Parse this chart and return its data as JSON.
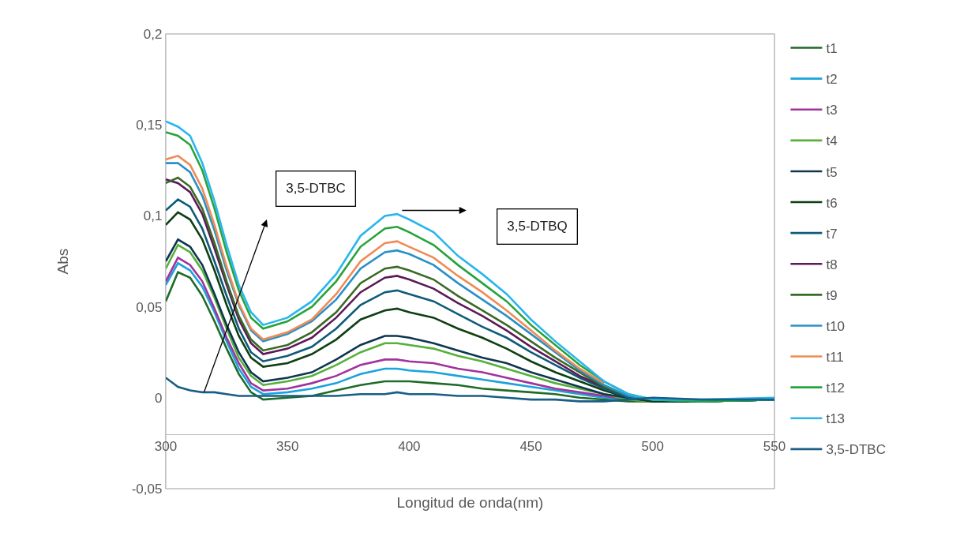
{
  "chart_data": {
    "type": "line",
    "xlabel": "Longitud de onda(nm)",
    "ylabel": "Abs",
    "x": [
      300,
      305,
      310,
      315,
      320,
      325,
      330,
      335,
      340,
      350,
      360,
      370,
      380,
      390,
      395,
      400,
      410,
      420,
      430,
      440,
      450,
      460,
      470,
      480,
      490,
      500,
      520,
      550
    ],
    "series": [
      {
        "name": "t1",
        "color": "#1f6b28",
        "values": [
          0.053,
          0.069,
          0.066,
          0.056,
          0.042,
          0.027,
          0.013,
          0.003,
          -0.001,
          0.0,
          0.001,
          0.004,
          0.007,
          0.009,
          0.009,
          0.009,
          0.008,
          0.007,
          0.005,
          0.004,
          0.003,
          0.002,
          0.0,
          -0.001,
          -0.002,
          -0.002,
          -0.002,
          -0.001
        ]
      },
      {
        "name": "t2",
        "color": "#1aa3dc",
        "values": [
          0.062,
          0.074,
          0.07,
          0.061,
          0.047,
          0.031,
          0.016,
          0.006,
          0.002,
          0.003,
          0.005,
          0.008,
          0.013,
          0.016,
          0.016,
          0.015,
          0.014,
          0.012,
          0.01,
          0.008,
          0.006,
          0.004,
          0.002,
          0.0,
          -0.001,
          -0.002,
          -0.002,
          -0.001
        ]
      },
      {
        "name": "t3",
        "color": "#a0339c",
        "values": [
          0.064,
          0.077,
          0.073,
          0.064,
          0.049,
          0.033,
          0.019,
          0.008,
          0.004,
          0.005,
          0.008,
          0.012,
          0.018,
          0.021,
          0.021,
          0.02,
          0.019,
          0.016,
          0.014,
          0.011,
          0.008,
          0.005,
          0.003,
          0.001,
          -0.001,
          -0.002,
          null,
          null
        ]
      },
      {
        "name": "t4",
        "color": "#56b03a",
        "values": [
          0.071,
          0.084,
          0.08,
          0.07,
          0.055,
          0.038,
          0.022,
          0.012,
          0.007,
          0.009,
          0.012,
          0.018,
          0.025,
          0.03,
          0.03,
          0.029,
          0.027,
          0.023,
          0.02,
          0.016,
          0.012,
          0.008,
          0.005,
          0.002,
          -0.001,
          -0.002,
          -0.002,
          -0.001
        ]
      },
      {
        "name": "t5",
        "color": "#0f3550",
        "values": [
          0.075,
          0.087,
          0.083,
          0.073,
          0.057,
          0.04,
          0.025,
          0.014,
          0.009,
          0.011,
          0.014,
          0.021,
          0.029,
          0.034,
          0.034,
          0.033,
          0.03,
          0.026,
          0.022,
          0.019,
          0.014,
          0.01,
          0.006,
          0.002,
          0.0,
          -0.002,
          -0.002,
          -0.001
        ]
      },
      {
        "name": "t6",
        "color": "#0f3f14",
        "values": [
          0.095,
          0.102,
          0.098,
          0.087,
          0.07,
          0.051,
          0.034,
          0.022,
          0.017,
          0.019,
          0.024,
          0.032,
          0.043,
          0.048,
          0.049,
          0.047,
          0.044,
          0.038,
          0.033,
          0.027,
          0.02,
          0.014,
          0.009,
          0.004,
          0.0,
          -0.002,
          -0.002,
          -0.001
        ]
      },
      {
        "name": "t7",
        "color": "#0e5b7a",
        "values": [
          0.103,
          0.109,
          0.105,
          0.093,
          0.075,
          0.056,
          0.038,
          0.025,
          0.02,
          0.023,
          0.028,
          0.038,
          0.051,
          0.058,
          0.059,
          0.057,
          0.053,
          0.046,
          0.039,
          0.033,
          0.025,
          0.018,
          0.011,
          0.005,
          0.0,
          -0.001,
          -0.002,
          -0.001
        ]
      },
      {
        "name": "t8",
        "color": "#5c1a58",
        "values": [
          0.12,
          0.118,
          0.113,
          0.101,
          0.082,
          0.062,
          0.043,
          0.03,
          0.024,
          0.027,
          0.033,
          0.044,
          0.058,
          0.066,
          0.067,
          0.065,
          0.06,
          0.052,
          0.045,
          0.037,
          0.028,
          0.02,
          0.012,
          0.006,
          0.001,
          -0.001,
          null,
          null
        ]
      },
      {
        "name": "t9",
        "color": "#3a6a25",
        "values": [
          0.118,
          0.121,
          0.116,
          0.104,
          0.085,
          0.064,
          0.045,
          0.032,
          0.026,
          0.029,
          0.036,
          0.047,
          0.063,
          0.071,
          0.072,
          0.07,
          0.065,
          0.056,
          0.048,
          0.04,
          0.031,
          0.022,
          0.014,
          0.006,
          0.001,
          -0.001,
          -0.002,
          -0.001
        ]
      },
      {
        "name": "t10",
        "color": "#2990c8",
        "values": [
          0.129,
          0.129,
          0.124,
          0.111,
          0.092,
          0.07,
          0.051,
          0.037,
          0.031,
          0.035,
          0.042,
          0.054,
          0.071,
          0.08,
          0.081,
          0.079,
          0.073,
          0.063,
          0.054,
          0.045,
          0.035,
          0.025,
          0.015,
          0.007,
          0.001,
          -0.001,
          -0.002,
          -0.001
        ]
      },
      {
        "name": "t11",
        "color": "#ef8b55",
        "values": [
          0.131,
          0.133,
          0.128,
          0.115,
          0.095,
          0.072,
          0.052,
          0.038,
          0.032,
          0.036,
          0.043,
          0.057,
          0.075,
          0.085,
          0.086,
          0.083,
          0.077,
          0.067,
          0.058,
          0.048,
          0.037,
          0.026,
          0.016,
          0.008,
          null,
          null,
          null,
          null
        ]
      },
      {
        "name": "t12",
        "color": "#27a33b",
        "values": [
          0.146,
          0.144,
          0.139,
          0.125,
          0.104,
          0.08,
          0.059,
          0.044,
          0.038,
          0.042,
          0.05,
          0.064,
          0.083,
          0.093,
          0.094,
          0.091,
          0.084,
          0.073,
          0.063,
          0.053,
          0.04,
          0.029,
          0.018,
          0.009,
          0.002,
          -0.001,
          -0.002,
          -0.001
        ]
      },
      {
        "name": "t13",
        "color": "#2ab6ec",
        "values": [
          0.152,
          0.149,
          0.144,
          0.129,
          0.108,
          0.084,
          0.062,
          0.047,
          0.04,
          0.044,
          0.053,
          0.068,
          0.089,
          0.1,
          0.101,
          0.098,
          0.091,
          0.078,
          0.068,
          0.057,
          0.043,
          0.031,
          0.02,
          0.009,
          0.002,
          -0.001,
          -0.001,
          0.0
        ]
      },
      {
        "name": "3,5-DTBC",
        "color": "#195e85",
        "values": [
          0.011,
          0.006,
          0.004,
          0.003,
          0.003,
          0.002,
          0.001,
          0.001,
          0.001,
          0.001,
          0.001,
          0.001,
          0.002,
          0.002,
          0.003,
          0.002,
          0.002,
          0.001,
          0.001,
          0.0,
          -0.001,
          -0.001,
          -0.002,
          -0.002,
          -0.001,
          0.0,
          -0.001,
          -0.001
        ]
      }
    ],
    "xlim": [
      300,
      550
    ],
    "xticks": [
      300,
      350,
      400,
      450,
      500,
      550
    ],
    "ylim": [
      -0.05,
      0.2
    ],
    "yticks": [
      {
        "value": -0.05,
        "label": "-0,05"
      },
      {
        "value": 0,
        "label": "0"
      },
      {
        "value": 0.05,
        "label": "0,05"
      },
      {
        "value": 0.1,
        "label": "0,1"
      },
      {
        "value": 0.15,
        "label": "0,15"
      },
      {
        "value": 0.2,
        "label": "0,2"
      }
    ],
    "annotations": [
      "3,5-DTBC",
      "3,5-DTBQ"
    ],
    "grid": false,
    "legend": "right",
    "marker": "none",
    "line_style": "solid"
  }
}
